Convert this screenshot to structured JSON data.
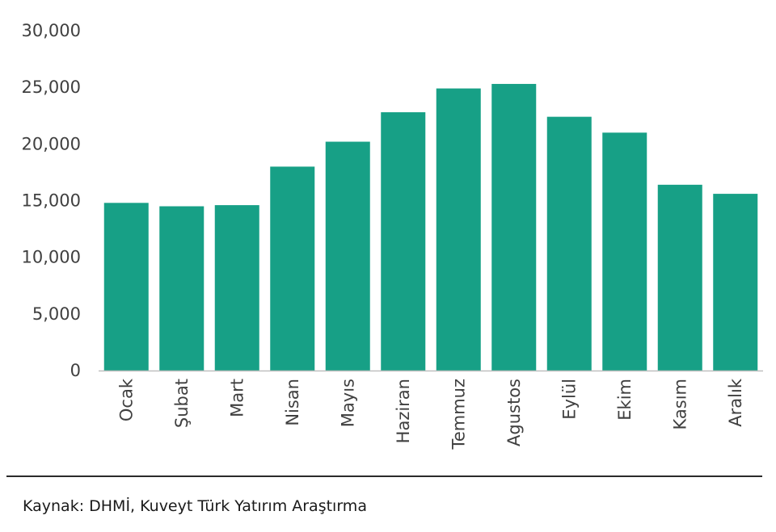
{
  "chart_data": {
    "type": "bar",
    "title": "",
    "xlabel": "",
    "ylabel": "",
    "categories": [
      "Ocak",
      "Şubat",
      "Mart",
      "Nisan",
      "Mayıs",
      "Haziran",
      "Temmuz",
      "Agustos",
      "Eylül",
      "Ekim",
      "Kasım",
      "Aralık"
    ],
    "values": [
      14800,
      14500,
      14600,
      18000,
      20200,
      22800,
      24900,
      25300,
      22400,
      21000,
      16400,
      15600
    ],
    "ylim": [
      0,
      30000
    ],
    "yticks": [
      0,
      5000,
      10000,
      15000,
      20000,
      25000,
      30000
    ],
    "ytick_labels": [
      "0",
      "5,000",
      "10,000",
      "15,000",
      "20,000",
      "25,000",
      "30,000"
    ],
    "grid": false,
    "legend": "none",
    "bar_color": "#17a086"
  },
  "footer": {
    "source": "Kaynak: DHMİ, Kuveyt Türk Yatırım Araştırma"
  }
}
